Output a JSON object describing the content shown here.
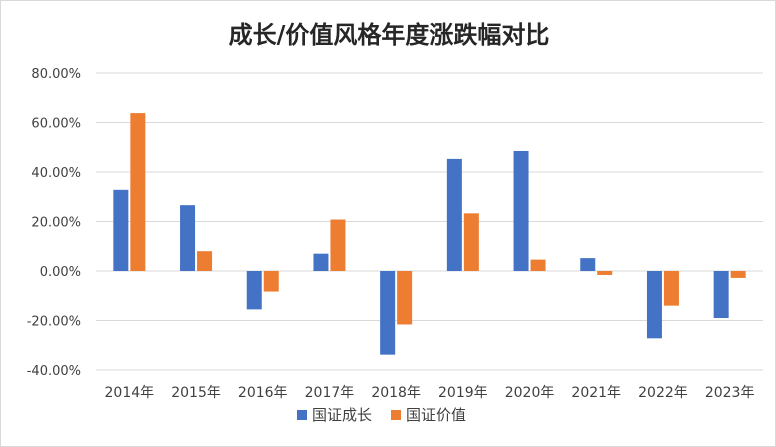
{
  "chart_data": {
    "type": "bar",
    "title": "成长/价值风格年度涨跌幅对比",
    "categories": [
      "2014年",
      "2015年",
      "2016年",
      "2017年",
      "2018年",
      "2019年",
      "2020年",
      "2021年",
      "2022年",
      "2023年"
    ],
    "series": [
      {
        "name": "国证成长",
        "color": "#4472C4",
        "values": [
          32.8,
          26.6,
          -15.5,
          7.0,
          -33.8,
          45.3,
          48.5,
          5.2,
          -27.2,
          -19.0
        ]
      },
      {
        "name": "国证价值",
        "color": "#ED7D31",
        "values": [
          63.8,
          8.0,
          -8.3,
          20.8,
          -21.6,
          23.3,
          4.6,
          -1.6,
          -14.0,
          -2.8
        ]
      }
    ],
    "y_ticks": [
      "80.00%",
      "60.00%",
      "40.00%",
      "20.00%",
      "0.00%",
      "-20.00%",
      "-40.00%"
    ],
    "ylim": [
      -40,
      80
    ],
    "xlabel": "",
    "ylabel": "",
    "grid": true,
    "legend_position": "bottom"
  }
}
